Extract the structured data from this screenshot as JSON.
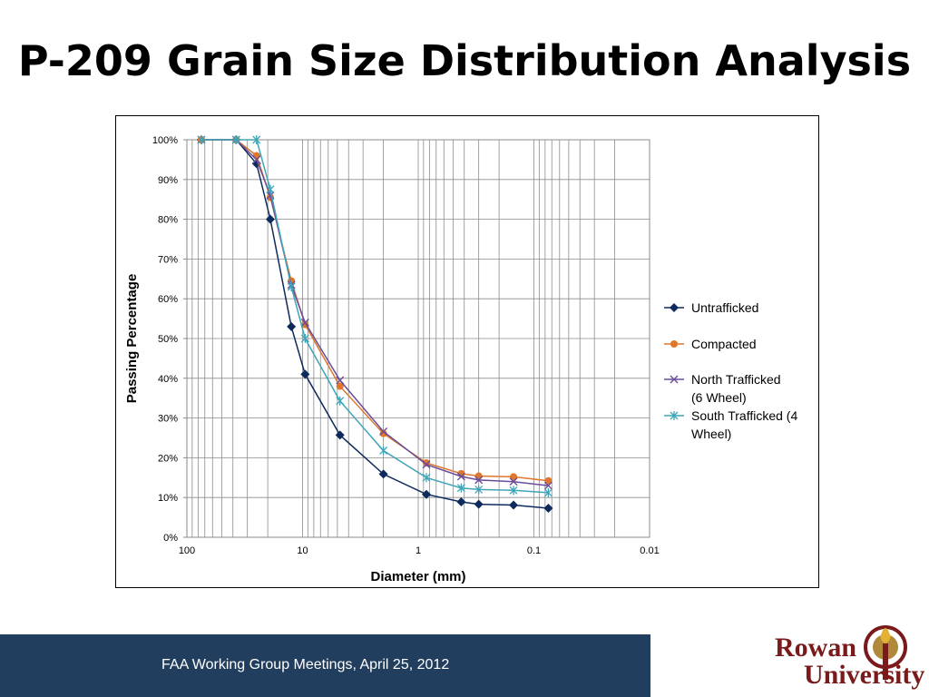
{
  "slide": {
    "title": "P-209 Grain Size Distribution Analysis",
    "footer": "FAA Working Group Meetings, April 25, 2012",
    "logo_line1": "Rowan",
    "logo_line2": "University"
  },
  "colors": {
    "footer_bg": "#223e5e",
    "logo": "#7a1a1a"
  },
  "chart_data": {
    "type": "line",
    "x_scale": "log",
    "x_reversed": true,
    "xlim": [
      100,
      0.01
    ],
    "ylim": [
      0,
      100
    ],
    "xlabel": "Diameter (mm)",
    "ylabel": "Passing Percentage",
    "x_ticks": [
      {
        "value": 100,
        "label": "100"
      },
      {
        "value": 10,
        "label": "10"
      },
      {
        "value": 1,
        "label": "1"
      },
      {
        "value": 0.1,
        "label": "0.1"
      },
      {
        "value": 0.01,
        "label": "0.01"
      }
    ],
    "y_ticks": [
      0,
      10,
      20,
      30,
      40,
      50,
      60,
      70,
      80,
      90,
      100
    ],
    "y_tick_labels": [
      "0%",
      "10%",
      "20%",
      "30%",
      "40%",
      "50%",
      "60%",
      "70%",
      "80%",
      "90%",
      "100%"
    ],
    "grid": true,
    "legend_position": "right",
    "series": [
      {
        "name": "Untrafficked",
        "color": "#0e2a5c",
        "marker": "diamond",
        "points": [
          [
            75,
            100
          ],
          [
            37.5,
            100
          ],
          [
            25,
            94
          ],
          [
            19,
            80
          ],
          [
            12.5,
            53
          ],
          [
            9.5,
            41
          ],
          [
            4.75,
            25.7
          ],
          [
            2,
            15.9
          ],
          [
            0.85,
            10.8
          ],
          [
            0.425,
            8.9
          ],
          [
            0.3,
            8.3
          ],
          [
            0.15,
            8.1
          ],
          [
            0.075,
            7.3
          ]
        ]
      },
      {
        "name": "Compacted",
        "color": "#e0762a",
        "marker": "circle",
        "points": [
          [
            75,
            100
          ],
          [
            37.5,
            100
          ],
          [
            25,
            96
          ],
          [
            19,
            85.5
          ],
          [
            12.5,
            64.5
          ],
          [
            9.5,
            53.5
          ],
          [
            4.75,
            38
          ],
          [
            2,
            26.1
          ],
          [
            0.85,
            18.7
          ],
          [
            0.425,
            16
          ],
          [
            0.3,
            15.4
          ],
          [
            0.15,
            15.2
          ],
          [
            0.075,
            14.2
          ]
        ]
      },
      {
        "name": "North Trafficked (6 Wheel)",
        "color": "#6a4d9a",
        "marker": "x",
        "points": [
          [
            75,
            100
          ],
          [
            37.5,
            100
          ],
          [
            25,
            95
          ],
          [
            19,
            86
          ],
          [
            12.5,
            63.5
          ],
          [
            9.5,
            54
          ],
          [
            4.75,
            39.5
          ],
          [
            2,
            26.6
          ],
          [
            0.85,
            18.3
          ],
          [
            0.425,
            15.3
          ],
          [
            0.3,
            14.4
          ],
          [
            0.15,
            14
          ],
          [
            0.075,
            13
          ]
        ]
      },
      {
        "name": "South Trafficked (4 Wheel)",
        "color": "#3fa5b8",
        "marker": "star",
        "points": [
          [
            75,
            100
          ],
          [
            37.5,
            100
          ],
          [
            25,
            100
          ],
          [
            19,
            87.5
          ],
          [
            12.5,
            63
          ],
          [
            9.5,
            50
          ],
          [
            4.75,
            34.3
          ],
          [
            2,
            21.8
          ],
          [
            0.85,
            15
          ],
          [
            0.425,
            12.4
          ],
          [
            0.3,
            12
          ],
          [
            0.15,
            11.8
          ],
          [
            0.075,
            11.2
          ]
        ]
      }
    ],
    "legend_lines": [
      [
        "Untrafficked"
      ],
      [
        "Compacted"
      ],
      [
        "North Trafficked",
        "(6 Wheel)"
      ],
      [
        "South Trafficked (4",
        "Wheel)"
      ]
    ]
  }
}
